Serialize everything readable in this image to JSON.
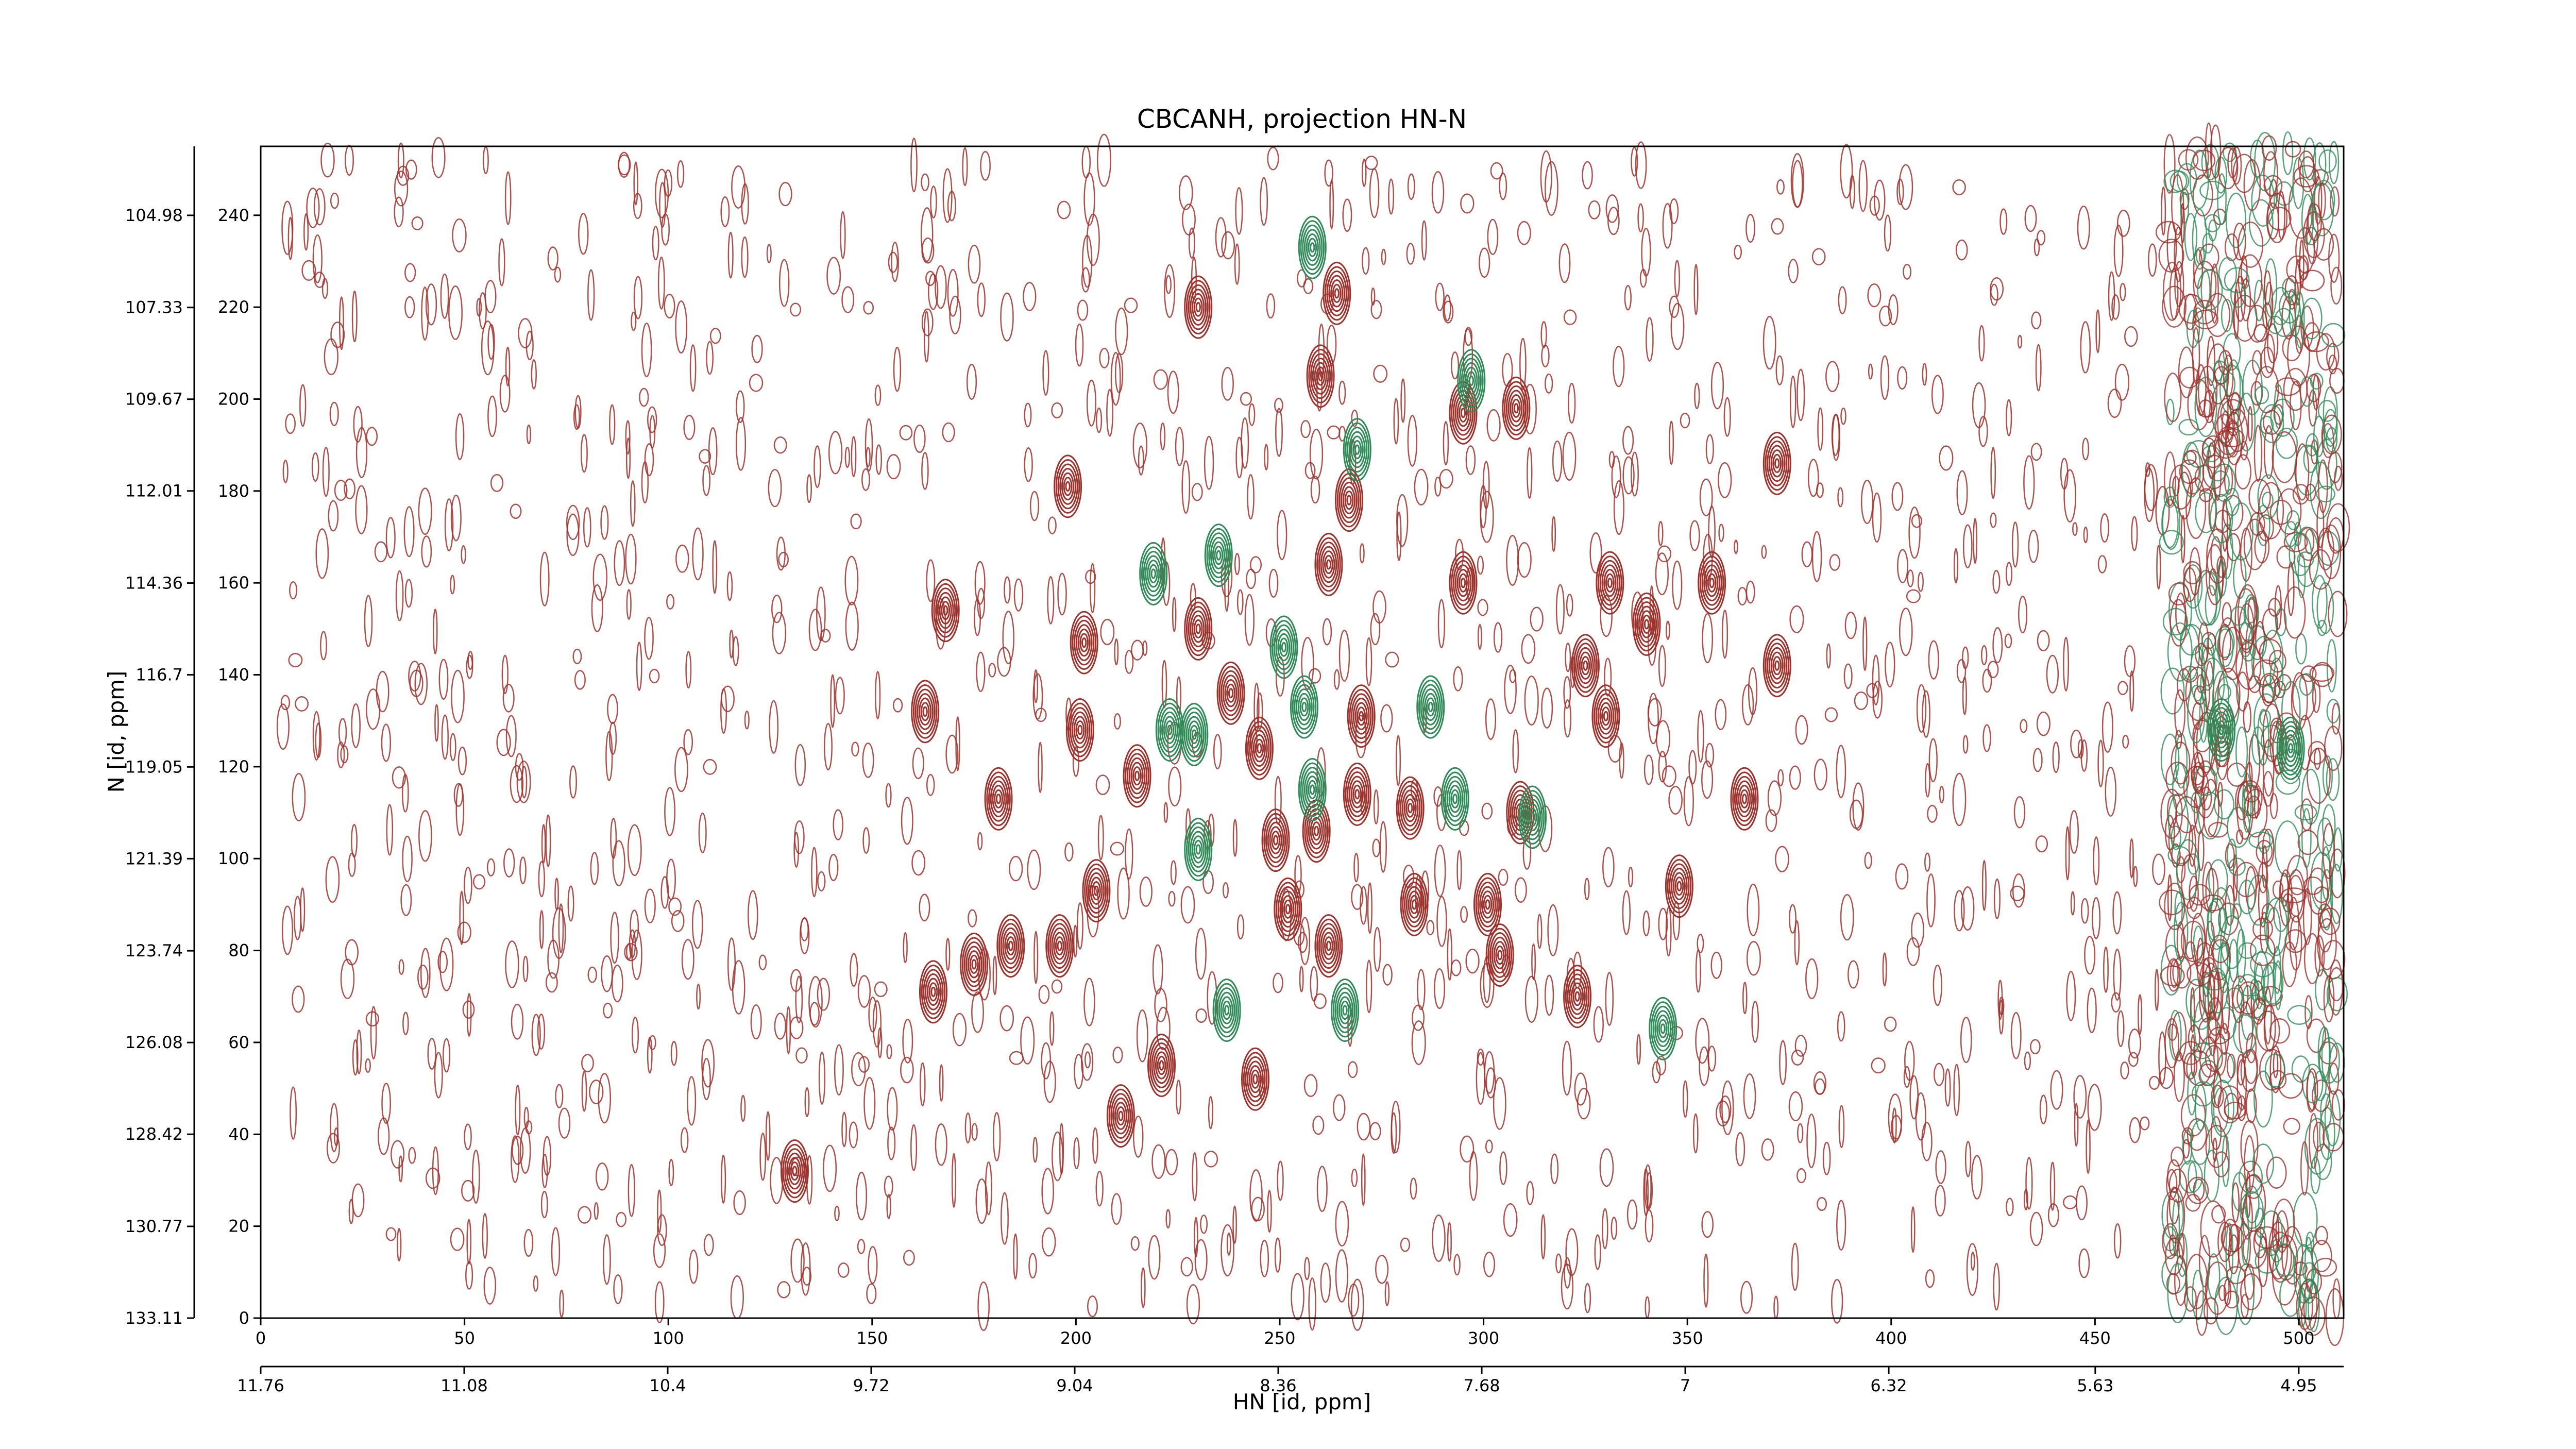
{
  "chart_data": {
    "type": "contour",
    "title": "CBCANH, projection HN-N",
    "xlabel": "HN [id, ppm]",
    "ylabel": "N [id, ppm]",
    "xlim": [
      0,
      511
    ],
    "ylim": [
      0,
      255
    ],
    "xticks": [
      0,
      50,
      100,
      150,
      200,
      250,
      300,
      350,
      400,
      450,
      500
    ],
    "yticks": [
      0,
      20,
      40,
      60,
      80,
      100,
      120,
      140,
      160,
      180,
      200,
      220,
      240
    ],
    "x2lim": [
      11.76,
      4.8
    ],
    "x2ticks": [
      11.76,
      11.08,
      10.4,
      9.72,
      9.04,
      8.36,
      7.68,
      7.0,
      6.32,
      5.63,
      4.95
    ],
    "y2lim": [
      133.11,
      103.22
    ],
    "y2ticks": [
      133.11,
      130.77,
      128.42,
      126.08,
      123.74,
      121.39,
      119.05,
      116.7,
      114.36,
      112.01,
      109.67,
      107.33,
      104.98
    ],
    "series": [
      {
        "color": "#a0302a",
        "x": [
          230,
          264,
          260,
          198,
          267,
          168,
          230,
          202,
          163,
          238,
          262,
          295,
          308,
          181,
          249,
          259,
          269,
          282,
          309,
          364,
          372,
          325,
          330,
          340,
          356,
          184,
          196,
          205,
          165,
          175,
          221,
          244,
          252,
          262,
          283,
          301,
          304,
          323,
          211,
          131,
          348,
          295,
          331,
          372,
          245,
          270,
          201,
          215
        ],
        "y": [
          220,
          223,
          205,
          181,
          178,
          154,
          150,
          147,
          132,
          136,
          164,
          197,
          198,
          113,
          104,
          106,
          114,
          111,
          110,
          113,
          142,
          142,
          131,
          151,
          160,
          81,
          81,
          93,
          71,
          77,
          55,
          52,
          89,
          81,
          90,
          90,
          79,
          70,
          44,
          32,
          94,
          160,
          160,
          186,
          124,
          131,
          128,
          118
        ]
      },
      {
        "color": "#2e8b57",
        "x": [
          258,
          269,
          219,
          235,
          251,
          256,
          287,
          223,
          229,
          293,
          312,
          258,
          230,
          237,
          266,
          344,
          297,
          481,
          498
        ],
        "y": [
          233,
          189,
          162,
          166,
          146,
          133,
          133,
          128,
          127,
          113,
          109,
          115,
          102,
          67,
          67,
          63,
          204,
          128,
          124
        ]
      }
    ]
  }
}
